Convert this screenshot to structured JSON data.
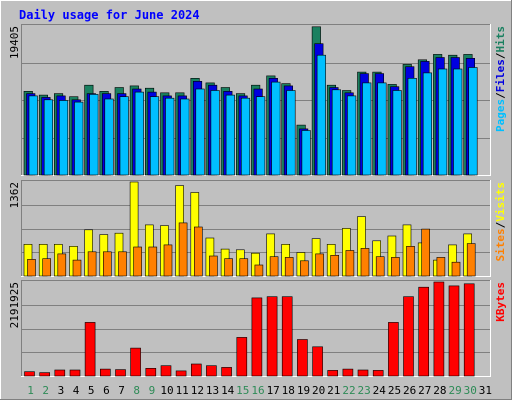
{
  "chart_data": [
    {
      "type": "bar",
      "title": "Daily usage for June 2024",
      "ylabel_parts": [
        "Pages",
        "Files",
        "Hits"
      ],
      "ymax_label": "19405",
      "ylim": [
        0,
        19405
      ],
      "categories": [
        "1",
        "2",
        "3",
        "4",
        "5",
        "6",
        "7",
        "8",
        "9",
        "10",
        "11",
        "12",
        "13",
        "14",
        "15",
        "16",
        "17",
        "18",
        "19",
        "20",
        "21",
        "22",
        "23",
        "24",
        "25",
        "26",
        "27",
        "28",
        "29",
        "30",
        "31"
      ],
      "weekend_days": [
        "1",
        "2",
        "8",
        "9",
        "15",
        "16",
        "22",
        "23",
        "29",
        "30"
      ],
      "series": [
        {
          "name": "Hits",
          "color": "#1a8060",
          "values": [
            10900,
            10400,
            10600,
            10200,
            11700,
            10900,
            11400,
            11600,
            11300,
            10700,
            10700,
            12600,
            12000,
            11400,
            10600,
            11700,
            12900,
            11900,
            6500,
            19300,
            11700,
            11000,
            13400,
            13400,
            11800,
            14400,
            15000,
            15700,
            15600,
            15700,
            0
          ]
        },
        {
          "name": "Files",
          "color": "#0000e0",
          "values": [
            10600,
            10100,
            10300,
            9800,
            10600,
            10600,
            10600,
            11200,
            10800,
            10300,
            10300,
            12200,
            11700,
            10900,
            10300,
            11200,
            12600,
            11600,
            6000,
            17100,
            11400,
            10700,
            13200,
            13200,
            11500,
            14100,
            14800,
            15300,
            15300,
            15200,
            0
          ]
        },
        {
          "name": "Pages",
          "color": "#00bfff",
          "values": [
            10300,
            9800,
            9700,
            9500,
            10500,
            9900,
            10200,
            10800,
            10200,
            10000,
            9900,
            11200,
            11000,
            10400,
            10000,
            10200,
            12100,
            11000,
            5800,
            15600,
            11100,
            10300,
            12000,
            12000,
            11000,
            12600,
            13300,
            13800,
            13800,
            14000,
            0
          ]
        }
      ]
    },
    {
      "type": "bar",
      "ylabel_parts": [
        "Sites",
        "Visits"
      ],
      "ymax_label": "1362",
      "ylim": [
        0,
        1362
      ],
      "categories": [
        "1",
        "2",
        "3",
        "4",
        "5",
        "6",
        "7",
        "8",
        "9",
        "10",
        "11",
        "12",
        "13",
        "14",
        "15",
        "16",
        "17",
        "18",
        "19",
        "20",
        "21",
        "22",
        "23",
        "24",
        "25",
        "26",
        "27",
        "28",
        "29",
        "30",
        "31"
      ],
      "series": [
        {
          "name": "Visits",
          "color": "#ffff00",
          "values": [
            460,
            460,
            460,
            430,
            670,
            600,
            620,
            1362,
            740,
            730,
            1310,
            1210,
            550,
            390,
            380,
            330,
            610,
            460,
            340,
            540,
            460,
            690,
            860,
            510,
            580,
            740,
            480,
            230,
            450,
            610,
            0
          ]
        },
        {
          "name": "Sites",
          "color": "#ff8000",
          "values": [
            240,
            250,
            320,
            230,
            350,
            350,
            350,
            420,
            420,
            450,
            770,
            710,
            290,
            250,
            250,
            160,
            280,
            270,
            220,
            320,
            300,
            370,
            400,
            280,
            270,
            430,
            680,
            270,
            200,
            470,
            0
          ]
        }
      ]
    },
    {
      "type": "bar",
      "ylabel_parts": [
        "KBytes"
      ],
      "ymax_label": "2191925",
      "ylim": [
        0,
        2191925
      ],
      "categories": [
        "1",
        "2",
        "3",
        "4",
        "5",
        "6",
        "7",
        "8",
        "9",
        "10",
        "11",
        "12",
        "13",
        "14",
        "15",
        "16",
        "17",
        "18",
        "19",
        "20",
        "21",
        "22",
        "23",
        "24",
        "25",
        "26",
        "27",
        "28",
        "29",
        "30",
        "31"
      ],
      "series": [
        {
          "name": "KBytes",
          "color": "#ff0000",
          "values": [
            100000,
            80000,
            140000,
            140000,
            1250000,
            160000,
            150000,
            650000,
            180000,
            240000,
            120000,
            280000,
            240000,
            200000,
            900000,
            1820000,
            1850000,
            1850000,
            850000,
            680000,
            130000,
            160000,
            140000,
            130000,
            1250000,
            1850000,
            2070000,
            2191925,
            2100000,
            2150000,
            0
          ]
        }
      ]
    }
  ]
}
